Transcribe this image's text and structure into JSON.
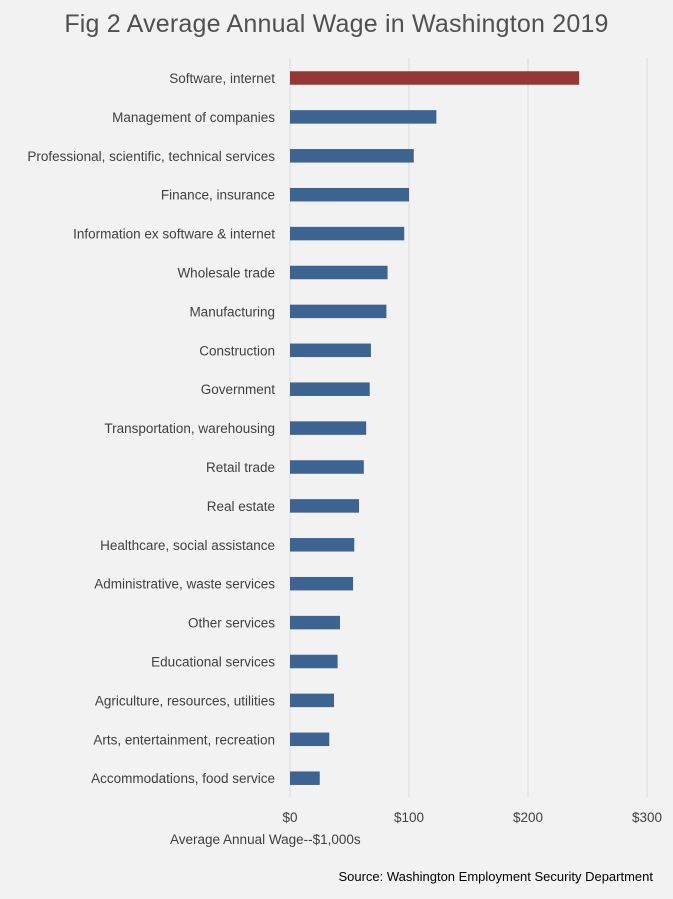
{
  "chart_data": {
    "type": "bar",
    "orientation": "horizontal",
    "title": "Fig 2 Average Annual Wage in Washington 2019",
    "xlabel": "Average Annual Wage--$1,000s",
    "ylabel": "",
    "xlim": [
      0,
      300
    ],
    "ticks": [
      0,
      100,
      200,
      300
    ],
    "tick_labels": [
      "$0",
      "$100",
      "$200",
      "$300"
    ],
    "grid": true,
    "categories": [
      "Software, internet",
      "Management of companies",
      "Professional, scientific, technical services",
      "Finance, insurance",
      "Information ex software & internet",
      "Wholesale trade",
      "Manufacturing",
      "Construction",
      "Government",
      "Transportation, warehousing",
      "Retail trade",
      "Real estate",
      "Healthcare, social assistance",
      "Administrative, waste services",
      "Other services",
      "Educational services",
      "Agriculture, resources, utilities",
      "Arts, entertainment, recreation",
      "Accommodations, food service"
    ],
    "values": [
      243,
      123,
      104,
      100,
      96,
      82,
      81,
      68,
      67,
      64,
      62,
      58,
      54,
      53,
      42,
      40,
      37,
      33,
      25
    ],
    "colors": {
      "highlight": "#953735",
      "default": "#3d6391",
      "grid": "#d9d9d9"
    },
    "source": "Source: Washington Employment Security Department"
  }
}
